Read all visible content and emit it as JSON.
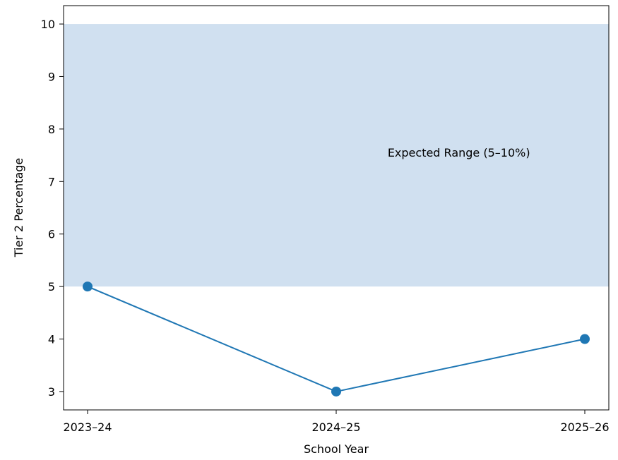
{
  "chart_data": {
    "type": "line",
    "title": "",
    "xlabel": "School Year",
    "ylabel": "Tier 2 Percentage",
    "categories": [
      "2023–24",
      "2024–25",
      "2025–26"
    ],
    "series": [
      {
        "values": [
          5,
          3,
          4
        ],
        "color": "#1f77b4",
        "marker": "circle"
      }
    ],
    "ylim": [
      2.65,
      10.35
    ],
    "yticks": [
      3,
      4,
      5,
      6,
      7,
      8,
      9,
      10
    ],
    "ytick_labels": [
      "3",
      "4",
      "5",
      "6",
      "7",
      "8",
      "9",
      "10"
    ],
    "band": {
      "from": 5,
      "to": 10,
      "color": "#d0e0f0",
      "label": "Expected Range (5–10%)"
    },
    "grid": false,
    "legend": "none"
  }
}
